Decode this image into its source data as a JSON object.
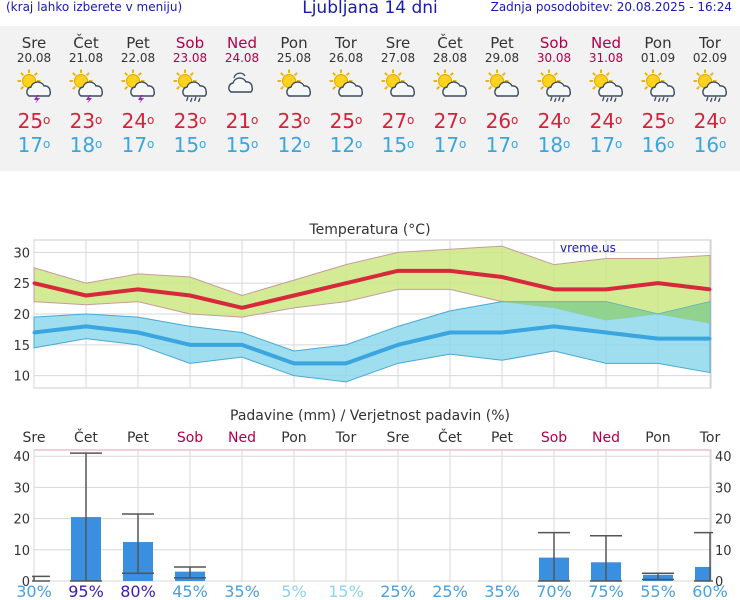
{
  "header": {
    "menu_hint": "(kraj lahko izberete v meniju)",
    "title": "Ljubljana 14 dni",
    "updated": "Zadnja posodobitev: 20.08.2025 - 16:24"
  },
  "days": [
    {
      "name": "Sre",
      "date": "20.08",
      "weekend": false,
      "icon": "sun-cloud-lightning-icon",
      "tmax": "25",
      "tmin": "17"
    },
    {
      "name": "Čet",
      "date": "21.08",
      "weekend": false,
      "icon": "sun-cloud-lightning-icon",
      "tmax": "23",
      "tmin": "18"
    },
    {
      "name": "Pet",
      "date": "22.08",
      "weekend": false,
      "icon": "sun-cloud-lightning-icon",
      "tmax": "24",
      "tmin": "17"
    },
    {
      "name": "Sob",
      "date": "23.08",
      "weekend": true,
      "icon": "sun-cloud-rain-icon",
      "tmax": "23",
      "tmin": "15"
    },
    {
      "name": "Ned",
      "date": "24.08",
      "weekend": true,
      "icon": "cloud-icon",
      "tmax": "21",
      "tmin": "15"
    },
    {
      "name": "Pon",
      "date": "25.08",
      "weekend": false,
      "icon": "sun-cloud-icon",
      "tmax": "23",
      "tmin": "12"
    },
    {
      "name": "Tor",
      "date": "26.08",
      "weekend": false,
      "icon": "sun-cloud-icon",
      "tmax": "25",
      "tmin": "12"
    },
    {
      "name": "Sre",
      "date": "27.08",
      "weekend": false,
      "icon": "sun-cloud-icon",
      "tmax": "27",
      "tmin": "15"
    },
    {
      "name": "Čet",
      "date": "28.08",
      "weekend": false,
      "icon": "sun-cloud-icon",
      "tmax": "27",
      "tmin": "17"
    },
    {
      "name": "Pet",
      "date": "29.08",
      "weekend": false,
      "icon": "sun-cloud-icon",
      "tmax": "26",
      "tmin": "17"
    },
    {
      "name": "Sob",
      "date": "30.08",
      "weekend": true,
      "icon": "sun-cloud-rain-icon",
      "tmax": "24",
      "tmin": "18"
    },
    {
      "name": "Ned",
      "date": "31.08",
      "weekend": true,
      "icon": "sun-cloud-rain-icon",
      "tmax": "24",
      "tmin": "17"
    },
    {
      "name": "Pon",
      "date": "01.09",
      "weekend": false,
      "icon": "sun-cloud-rain-icon",
      "tmax": "25",
      "tmin": "16"
    },
    {
      "name": "Tor",
      "date": "02.09",
      "weekend": false,
      "icon": "sun-cloud-rain-icon",
      "tmax": "24",
      "tmin": "16"
    }
  ],
  "colors": {
    "max_line": "#d8283c",
    "min_line": "#3aa5df",
    "max_band": "#cde882",
    "min_band": "#8ed8ec",
    "overlap": "#8fcf7a",
    "bar": "#3b8fe0",
    "weekend": "#b0004a",
    "prob_high": "#3a1ab5",
    "prob_mid": "#4aa0e0",
    "prob_low": "#8fd2ee"
  },
  "chart_data": [
    {
      "type": "line",
      "title": "Temperatura (°C)",
      "watermark": "vreme.us",
      "ylim": [
        8,
        32
      ],
      "yticks": [
        10,
        15,
        20,
        25,
        30
      ],
      "x": [
        "20.08",
        "21.08",
        "22.08",
        "23.08",
        "24.08",
        "25.08",
        "26.08",
        "27.08",
        "28.08",
        "29.08",
        "30.08",
        "31.08",
        "01.09",
        "02.09"
      ],
      "series": [
        {
          "name": "max",
          "values": [
            25,
            23,
            24,
            23,
            21,
            23,
            25,
            27,
            27,
            26,
            24,
            24,
            25,
            24
          ],
          "band_low": [
            22,
            21.5,
            22,
            20,
            19.5,
            21,
            22,
            24,
            24,
            22,
            21,
            19,
            20,
            18.5
          ],
          "band_high": [
            27.5,
            25,
            26.5,
            26,
            23,
            25.5,
            28,
            30,
            30.5,
            31,
            28,
            29,
            29,
            29.5
          ]
        },
        {
          "name": "min",
          "values": [
            17,
            18,
            17,
            15,
            15,
            12,
            12,
            15,
            17,
            17,
            18,
            17,
            16,
            16
          ],
          "band_low": [
            14.5,
            16,
            15,
            12,
            13,
            10,
            9,
            12,
            13.5,
            12.5,
            14,
            12,
            12,
            10.5
          ],
          "band_high": [
            19.5,
            20,
            19.5,
            18,
            17,
            14,
            15,
            18,
            20.5,
            22,
            22,
            22,
            20,
            22
          ]
        }
      ]
    },
    {
      "type": "bar",
      "title": "Padavine (mm) / Verjetnost padavin (%)",
      "ylim": [
        0,
        42
      ],
      "yticks": [
        0,
        10,
        20,
        30,
        40
      ],
      "categories": [
        "Sre",
        "Čet",
        "Pet",
        "Sob",
        "Ned",
        "Pon",
        "Tor",
        "Sre",
        "Čet",
        "Pet",
        "Sob",
        "Ned",
        "Pon",
        "Tor"
      ],
      "weekend": [
        false,
        false,
        false,
        true,
        true,
        false,
        false,
        false,
        false,
        false,
        true,
        true,
        false,
        false
      ],
      "values": [
        0,
        20.5,
        12.5,
        3,
        0,
        0,
        0,
        0,
        0,
        0,
        7.5,
        6,
        2,
        4.5
      ],
      "err_low": [
        0,
        0,
        2.5,
        1,
        0,
        0,
        0,
        0,
        0,
        0,
        0,
        0,
        0.5,
        0
      ],
      "err_high": [
        1.5,
        41,
        21.5,
        4.5,
        0,
        0,
        0,
        0,
        0,
        0,
        15.5,
        14.5,
        2.5,
        15.5
      ],
      "probabilities": [
        "30%",
        "95%",
        "80%",
        "45%",
        "35%",
        "5%",
        "15%",
        "25%",
        "25%",
        "35%",
        "70%",
        "75%",
        "55%",
        "60%"
      ]
    }
  ]
}
